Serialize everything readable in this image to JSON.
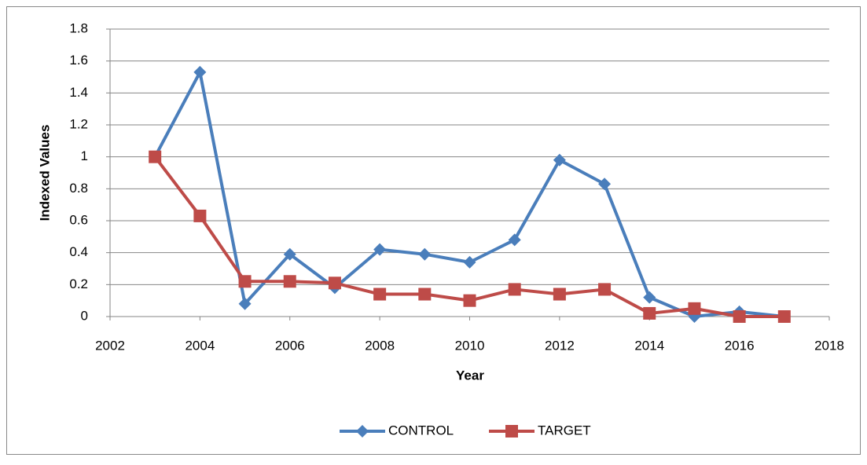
{
  "chart_data": {
    "type": "line",
    "x_label": "Year",
    "y_label": "Indexed Values",
    "x": [
      2003,
      2004,
      2005,
      2006,
      2007,
      2008,
      2009,
      2010,
      2011,
      2012,
      2013,
      2014,
      2015,
      2016,
      2017
    ],
    "series": [
      {
        "name": "CONTROL",
        "color": "#4a7ebb",
        "marker": "diamond",
        "values": [
          1.0,
          1.53,
          0.08,
          0.39,
          0.18,
          0.42,
          0.39,
          0.34,
          0.48,
          0.98,
          0.83,
          0.12,
          0.0,
          0.03,
          0.0
        ]
      },
      {
        "name": "TARGET",
        "color": "#be4b48",
        "marker": "square",
        "values": [
          1.0,
          0.63,
          0.22,
          0.22,
          0.21,
          0.14,
          0.14,
          0.1,
          0.17,
          0.14,
          0.17,
          0.02,
          0.05,
          0.0,
          0.0
        ]
      }
    ],
    "xlim": [
      2002,
      2018
    ],
    "xticks": [
      2002,
      2004,
      2006,
      2008,
      2010,
      2012,
      2014,
      2016,
      2018
    ],
    "ylim": [
      0,
      1.8
    ],
    "yticks": [
      0,
      0.2,
      0.4,
      0.6,
      0.8,
      1,
      1.2,
      1.4,
      1.6,
      1.8
    ],
    "grid": true,
    "legend": "bottom"
  }
}
